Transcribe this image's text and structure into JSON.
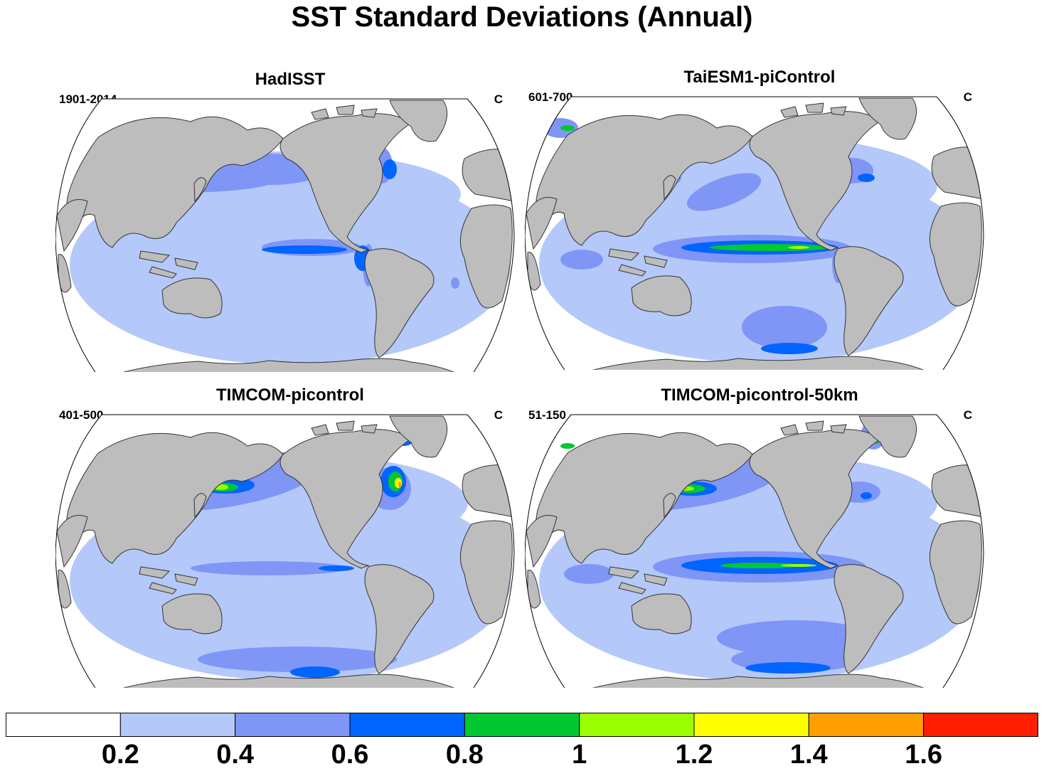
{
  "title": "SST Standard Deviations (Annual)",
  "panels": [
    {
      "title": "HadISST",
      "period": "1901-2014",
      "unit": "C"
    },
    {
      "title": "TaiESM1-piControl",
      "period": "601-700",
      "unit": "C"
    },
    {
      "title": "TIMCOM-picontrol",
      "period": "401-500",
      "unit": "C"
    },
    {
      "title": "TIMCOM-picontrol-50km",
      "period": "51-150",
      "unit": "C"
    }
  ],
  "colorbar": {
    "labels": [
      "0.2",
      "0.4",
      "0.6",
      "0.8",
      "1",
      "1.2",
      "1.4",
      "1.6"
    ],
    "colors": [
      "#ffffff",
      "#b4c8fa",
      "#7f96f7",
      "#0064ff",
      "#00c832",
      "#9bff00",
      "#ffff00",
      "#ff9f00",
      "#ff1e00"
    ]
  },
  "land_color": "#bdbdbd"
}
